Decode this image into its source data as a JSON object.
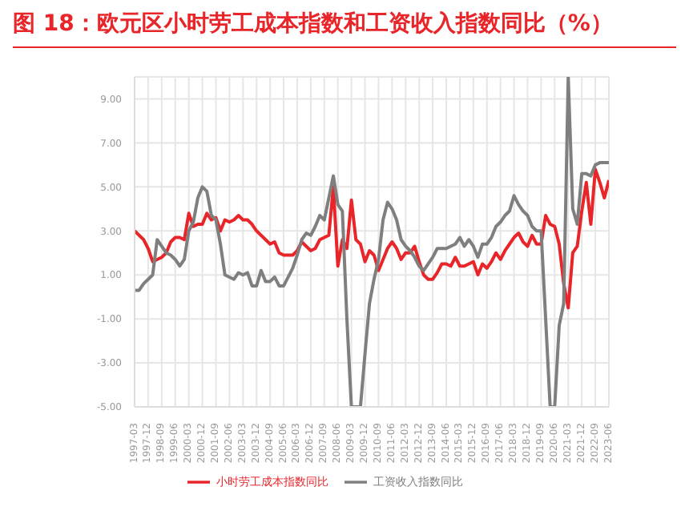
{
  "chart_data": {
    "type": "line",
    "title": "图 18：欧元区小时劳工成本指数和工资收入指数同比（%）",
    "categories": [
      "1997-03",
      null,
      null,
      "1997-12",
      null,
      null,
      "1998-09",
      null,
      null,
      "1999-06",
      null,
      null,
      "2000-03",
      null,
      null,
      "2000-12",
      null,
      null,
      "2001-09",
      null,
      null,
      "2002-06",
      null,
      null,
      "2003-03",
      null,
      null,
      "2003-12",
      null,
      null,
      "2004-09",
      null,
      null,
      "2005-06",
      null,
      null,
      "2006-03",
      null,
      null,
      "2006-12",
      null,
      null,
      "2007-09",
      null,
      null,
      "2008-06",
      null,
      null,
      "2009-03",
      null,
      null,
      "2009-12",
      null,
      null,
      "2010-09",
      null,
      null,
      "2011-06",
      null,
      null,
      "2012-03",
      null,
      null,
      "2012-12",
      null,
      null,
      "2013-09",
      null,
      null,
      "2014-06",
      null,
      null,
      "2015-03",
      null,
      null,
      "2015-12",
      null,
      null,
      "2016-09",
      null,
      null,
      "2017-06",
      null,
      null,
      "2018-03",
      null,
      null,
      "2018-12",
      null,
      null,
      "2019-09",
      null,
      null,
      "2020-06",
      null,
      null,
      "2021-03",
      null,
      null,
      "2021-12",
      null,
      null,
      "2022-09",
      null,
      null,
      "2023-06"
    ],
    "series": [
      {
        "name": "小时劳工成本指数同比",
        "color": "#e8262a",
        "values": [
          3.0,
          2.8,
          2.6,
          2.2,
          1.6,
          1.7,
          1.8,
          2.0,
          2.5,
          2.7,
          2.7,
          2.6,
          3.8,
          3.2,
          3.3,
          3.3,
          3.8,
          3.5,
          3.6,
          3.0,
          3.5,
          3.4,
          3.5,
          3.7,
          3.5,
          3.5,
          3.3,
          3.0,
          2.8,
          2.6,
          2.4,
          2.5,
          2.0,
          1.9,
          1.9,
          1.9,
          2.1,
          2.5,
          2.3,
          2.1,
          2.2,
          2.6,
          2.7,
          2.8,
          5.0,
          1.4,
          2.6,
          2.2,
          4.4,
          2.6,
          2.4,
          1.6,
          2.1,
          1.9,
          1.2,
          1.7,
          2.2,
          2.5,
          2.2,
          1.7,
          2.0,
          2.0,
          2.3,
          1.6,
          1.0,
          0.8,
          0.8,
          1.1,
          1.5,
          1.5,
          1.4,
          1.8,
          1.4,
          1.4,
          1.5,
          1.6,
          1.0,
          1.5,
          1.3,
          1.6,
          2.0,
          1.7,
          2.1,
          2.4,
          2.7,
          2.9,
          2.5,
          2.3,
          2.8,
          2.4,
          2.4,
          3.7,
          3.3,
          3.2,
          2.4,
          0.6,
          -0.5,
          2.0,
          2.3,
          3.9,
          5.2,
          3.3,
          5.8,
          5.2,
          4.5,
          5.3
        ]
      },
      {
        "name": "工资收入指数同比",
        "color": "#7f7f7f",
        "values": [
          0.3,
          0.3,
          0.6,
          0.8,
          1.0,
          2.6,
          2.3,
          2.0,
          1.9,
          1.7,
          1.4,
          1.7,
          3.0,
          3.4,
          4.5,
          5.0,
          4.8,
          3.7,
          3.5,
          2.4,
          1.0,
          0.9,
          0.8,
          1.1,
          1.0,
          1.1,
          0.5,
          0.5,
          1.2,
          0.7,
          0.7,
          0.9,
          0.5,
          0.5,
          0.9,
          1.3,
          1.9,
          2.6,
          2.9,
          2.8,
          3.2,
          3.7,
          3.5,
          4.5,
          5.5,
          4.2,
          3.9,
          -1.0,
          -5,
          -5,
          -5,
          -2.6,
          -0.3,
          0.8,
          1.7,
          3.5,
          4.3,
          4.0,
          3.5,
          2.6,
          2.3,
          2.1,
          1.8,
          1.4,
          1.2,
          1.5,
          1.8,
          2.2,
          2.2,
          2.2,
          2.3,
          2.4,
          2.7,
          2.3,
          2.6,
          2.3,
          1.8,
          2.4,
          2.4,
          2.7,
          3.2,
          3.4,
          3.7,
          3.9,
          4.6,
          4.2,
          3.9,
          3.7,
          3.2,
          3.0,
          3.0,
          -1.0,
          -5,
          -5,
          -1.3,
          -0.3,
          10,
          4.0,
          3.3,
          5.6,
          5.6,
          5.5,
          6.0,
          6.1,
          6.1,
          6.1
        ]
      }
    ],
    "ylim": [
      -5,
      10
    ],
    "yticks": [
      {
        "value": -5,
        "label": "-5.00"
      },
      {
        "value": -3,
        "label": "-3.00"
      },
      {
        "value": -1,
        "label": "-1.00"
      },
      {
        "value": 1,
        "label": "1.00"
      },
      {
        "value": 3,
        "label": "3.00"
      },
      {
        "value": 5,
        "label": "5.00"
      },
      {
        "value": 7,
        "label": "7.00"
      },
      {
        "value": 9,
        "label": "9.00"
      }
    ],
    "grid": true,
    "legend": "bottom",
    "marker": "none",
    "line_style": "solid"
  }
}
